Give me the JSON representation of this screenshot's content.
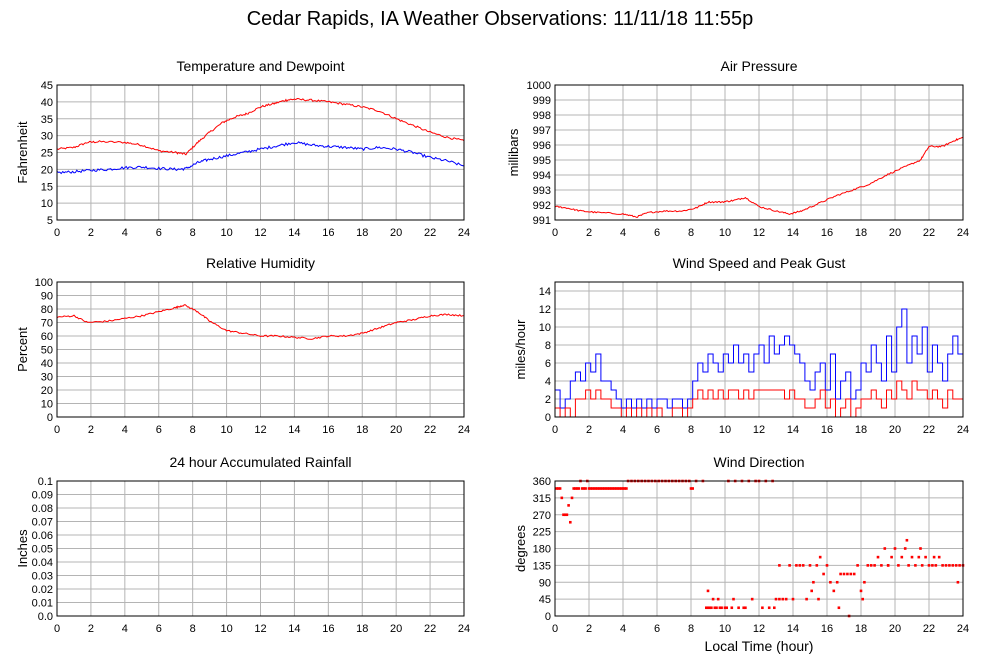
{
  "page": {
    "title": "Cedar Rapids, IA Weather Observations: 11/11/18 11:55p",
    "x_axis_label": "Local Time (hour)"
  },
  "colors": {
    "red": "#ff0000",
    "blue": "#0000ff",
    "grid": "#b4b4b4",
    "frame": "#000000"
  },
  "chart_data": [
    {
      "id": "temp",
      "type": "line",
      "title": "Temperature and Dewpoint",
      "xlabel": "",
      "ylabel": "Fahrenheit",
      "xlim": [
        0,
        24
      ],
      "ylim": [
        5,
        45
      ],
      "xticks": [
        0,
        2,
        4,
        6,
        8,
        10,
        12,
        14,
        16,
        18,
        20,
        22,
        24
      ],
      "yticks": [
        5,
        10,
        15,
        20,
        25,
        30,
        35,
        40,
        45
      ],
      "grid": true,
      "series": [
        {
          "color": "red",
          "noise": 0.3,
          "x": [
            0,
            1,
            1.8,
            2.5,
            4,
            5,
            6,
            7,
            7.6,
            8.3,
            9,
            9.8,
            10.5,
            11.2,
            12,
            12.8,
            13.5,
            14,
            15,
            16,
            17,
            18,
            19,
            20,
            21,
            22,
            23,
            24
          ],
          "y": [
            26,
            26.5,
            28,
            28.2,
            28,
            27.2,
            25.5,
            25,
            24.5,
            28,
            31,
            34,
            35.5,
            36.5,
            38.5,
            39.5,
            40.5,
            40.8,
            40.5,
            40,
            39.3,
            38.5,
            37.3,
            35,
            33,
            31,
            29.5,
            28.5
          ]
        },
        {
          "color": "blue",
          "noise": 0.4,
          "x": [
            0,
            1,
            2,
            3,
            4,
            5,
            6,
            7,
            7.6,
            8.3,
            9,
            10,
            11,
            12,
            13,
            14,
            15,
            16,
            17,
            18,
            19,
            20,
            21,
            22,
            23,
            24
          ],
          "y": [
            19,
            19.3,
            19.7,
            20,
            20.5,
            20.7,
            20.3,
            20,
            20.2,
            22,
            23,
            24,
            25,
            26,
            27,
            28,
            27.2,
            26.8,
            26.5,
            26,
            26.5,
            26,
            25,
            23.5,
            22.5,
            21
          ]
        }
      ]
    },
    {
      "id": "pressure",
      "type": "line",
      "title": "Air Pressure",
      "xlabel": "",
      "ylabel": "millibars",
      "xlim": [
        0,
        24
      ],
      "ylim": [
        991,
        1000
      ],
      "xticks": [
        0,
        2,
        4,
        6,
        8,
        10,
        12,
        14,
        16,
        18,
        20,
        22,
        24
      ],
      "yticks": [
        991,
        992,
        993,
        994,
        995,
        996,
        997,
        998,
        999,
        1000
      ],
      "grid": true,
      "series": [
        {
          "color": "red",
          "noise": 0.05,
          "x": [
            0,
            0.7,
            1.5,
            2.5,
            4,
            4.8,
            5.5,
            6.5,
            7.5,
            8.3,
            9,
            9.8,
            10.5,
            11.2,
            12,
            13,
            13.8,
            14.5,
            15.5,
            16.5,
            17.5,
            18.5,
            19.5,
            20.5,
            21.5,
            22,
            22.8,
            23.5,
            24
          ],
          "y": [
            991.9,
            991.8,
            991.6,
            991.5,
            991.4,
            991.2,
            991.5,
            991.6,
            991.6,
            991.8,
            992.2,
            992.2,
            992.3,
            992.5,
            991.9,
            991.6,
            991.4,
            991.6,
            992.1,
            992.6,
            993,
            993.4,
            994,
            994.5,
            995,
            995.9,
            995.9,
            996.3,
            996.5
          ]
        }
      ]
    },
    {
      "id": "rh",
      "type": "line",
      "title": "Relative Humidity",
      "xlabel": "",
      "ylabel": "Percent",
      "xlim": [
        0,
        24
      ],
      "ylim": [
        0,
        100
      ],
      "xticks": [
        0,
        2,
        4,
        6,
        8,
        10,
        12,
        14,
        16,
        18,
        20,
        22,
        24
      ],
      "yticks": [
        0,
        10,
        20,
        30,
        40,
        50,
        60,
        70,
        80,
        90,
        100
      ],
      "grid": true,
      "series": [
        {
          "color": "red",
          "noise": 0.6,
          "x": [
            0,
            1,
            1.8,
            3,
            4,
            5,
            6,
            7,
            7.5,
            8.3,
            9,
            10,
            11,
            12,
            13,
            14,
            15,
            16,
            17,
            18,
            19,
            20,
            21,
            22,
            23,
            24
          ],
          "y": [
            74,
            75,
            70,
            71,
            73,
            75,
            78,
            81,
            83,
            78,
            71,
            64,
            62,
            60,
            60,
            59,
            58,
            60,
            60,
            62,
            66,
            70,
            72,
            75,
            76,
            75
          ]
        }
      ]
    },
    {
      "id": "wind",
      "type": "line",
      "title": "Wind Speed and Peak Gust",
      "xlabel": "",
      "ylabel": "miles/hour",
      "xlim": [
        0,
        24
      ],
      "ylim": [
        0,
        15
      ],
      "xticks": [
        0,
        2,
        4,
        6,
        8,
        10,
        12,
        14,
        16,
        18,
        20,
        22,
        24
      ],
      "yticks": [
        0,
        2,
        4,
        6,
        8,
        10,
        12,
        14
      ],
      "grid": true,
      "series": [
        {
          "color": "blue",
          "step": true,
          "x": [
            0,
            0.3,
            0.6,
            0.9,
            1.2,
            1.5,
            1.8,
            2.1,
            2.4,
            2.7,
            3.0,
            3.3,
            3.6,
            3.9,
            4.2,
            4.5,
            4.8,
            5.1,
            5.4,
            5.7,
            6.0,
            6.3,
            6.6,
            6.9,
            7.2,
            7.5,
            7.8,
            8.1,
            8.4,
            8.7,
            9.0,
            9.3,
            9.6,
            9.9,
            10.2,
            10.5,
            10.8,
            11.1,
            11.4,
            11.7,
            12.0,
            12.3,
            12.6,
            12.9,
            13.2,
            13.5,
            13.8,
            14.1,
            14.4,
            14.7,
            15.0,
            15.3,
            15.6,
            15.9,
            16.2,
            16.5,
            16.8,
            17.1,
            17.4,
            17.7,
            18.0,
            18.3,
            18.6,
            18.9,
            19.2,
            19.5,
            19.8,
            20.1,
            20.4,
            20.7,
            21.0,
            21.3,
            21.6,
            21.9,
            22.2,
            22.5,
            22.8,
            23.1,
            23.4,
            23.7,
            24.0
          ],
          "y": [
            3,
            1,
            2,
            4,
            5,
            4,
            6,
            5,
            7,
            4,
            4,
            3,
            2,
            1,
            2,
            1,
            2,
            1,
            2,
            1,
            2,
            2,
            1,
            2,
            2,
            1,
            2,
            4,
            6,
            5,
            7,
            6,
            5,
            7,
            6,
            8,
            6,
            7,
            5,
            7,
            8,
            6,
            9,
            7,
            8,
            9,
            8,
            7,
            6,
            4,
            3,
            5,
            6,
            3,
            7,
            2,
            4,
            5,
            2,
            3,
            6,
            5,
            8,
            6,
            4,
            9,
            5,
            10,
            12,
            6,
            9,
            7,
            10,
            5,
            8,
            6,
            4,
            7,
            9,
            7,
            9
          ]
        },
        {
          "color": "red",
          "step": true,
          "x": [
            0,
            0.3,
            0.6,
            0.9,
            1.2,
            1.5,
            1.8,
            2.1,
            2.4,
            2.7,
            3.0,
            3.3,
            3.6,
            3.9,
            4.2,
            4.5,
            4.8,
            5.1,
            5.4,
            5.7,
            6.0,
            6.3,
            6.6,
            6.9,
            7.2,
            7.5,
            7.8,
            8.1,
            8.4,
            8.7,
            9.0,
            9.3,
            9.6,
            9.9,
            10.2,
            10.5,
            10.8,
            11.1,
            11.4,
            11.7,
            12.0,
            12.3,
            12.6,
            12.9,
            13.2,
            13.5,
            13.8,
            14.1,
            14.4,
            14.7,
            15.0,
            15.3,
            15.6,
            15.9,
            16.2,
            16.5,
            16.8,
            17.1,
            17.4,
            17.7,
            18.0,
            18.3,
            18.6,
            18.9,
            19.2,
            19.5,
            19.8,
            20.1,
            20.4,
            20.7,
            21.0,
            21.3,
            21.6,
            21.9,
            22.2,
            22.5,
            22.8,
            23.1,
            23.4,
            23.7,
            24.0
          ],
          "y": [
            1,
            0,
            1,
            0,
            2,
            2,
            3,
            2,
            3,
            2,
            2,
            1,
            1,
            0,
            1,
            0,
            1,
            0,
            1,
            0,
            1,
            0,
            0,
            1,
            1,
            0,
            1,
            2,
            3,
            2,
            3,
            2,
            3,
            2,
            3,
            3,
            2,
            3,
            2,
            3,
            3,
            3,
            3,
            3,
            3,
            2,
            3,
            2,
            2,
            1,
            1,
            2,
            3,
            1,
            2,
            0,
            1,
            2,
            0,
            1,
            2,
            2,
            3,
            2,
            1,
            3,
            2,
            4,
            3,
            2,
            4,
            3,
            3,
            2,
            3,
            2,
            1,
            3,
            2,
            2,
            3
          ]
        }
      ]
    },
    {
      "id": "rain",
      "type": "line",
      "title": "24 hour Accumulated Rainfall",
      "xlabel": "",
      "ylabel": "Inches",
      "xlim": [
        0,
        24
      ],
      "ylim": [
        0,
        0.1
      ],
      "xticks": [
        0,
        2,
        4,
        6,
        8,
        10,
        12,
        14,
        16,
        18,
        20,
        22,
        24
      ],
      "yticks": [
        0.0,
        0.01,
        0.02,
        0.03,
        0.04,
        0.05,
        0.06,
        0.07,
        0.08,
        0.09,
        0.1
      ],
      "ytick_labels": [
        "0.0",
        "0.01",
        "0.02",
        "0.03",
        "0.04",
        "0.05",
        "0.06",
        "0.07",
        "0.08",
        "0.09",
        "0.1"
      ],
      "grid": true,
      "series": [
        {
          "color": "red",
          "x": [
            0,
            24
          ],
          "y": [
            0,
            0
          ]
        }
      ]
    },
    {
      "id": "dir",
      "type": "scatter",
      "title": "Wind Direction",
      "xlabel": "Local Time (hour)",
      "ylabel": "degrees",
      "xlim": [
        0,
        24
      ],
      "ylim": [
        0,
        360
      ],
      "xticks": [
        0,
        2,
        4,
        6,
        8,
        10,
        12,
        14,
        16,
        18,
        20,
        22,
        24
      ],
      "yticks": [
        0,
        45,
        90,
        135,
        180,
        225,
        270,
        315,
        360
      ],
      "grid": true,
      "series": [
        {
          "color": "red",
          "x": [
            0.1,
            0.2,
            0.3,
            0.4,
            0.5,
            0.6,
            0.7,
            0.8,
            0.9,
            1.0,
            1.1,
            1.2,
            1.3,
            1.4,
            1.5,
            1.6,
            1.7,
            1.8,
            1.9,
            2.0,
            2.1,
            2.2,
            2.3,
            2.4,
            2.5,
            2.6,
            2.7,
            2.8,
            2.9,
            3.0,
            3.1,
            3.2,
            3.3,
            3.4,
            3.5,
            3.6,
            3.7,
            3.8,
            3.9,
            4.0,
            4.1,
            4.2,
            4.3,
            4.5,
            4.7,
            4.9,
            5.1,
            5.3,
            5.5,
            5.7,
            5.9,
            6.1,
            6.3,
            6.5,
            6.7,
            6.9,
            7.1,
            7.3,
            7.5,
            7.7,
            7.9,
            8.0,
            8.1,
            8.3,
            8.7,
            8.9,
            9.0,
            9.1,
            9.2,
            9.3,
            9.4,
            9.5,
            9.6,
            9.7,
            9.8,
            10.0,
            10.1,
            10.2,
            10.4,
            10.6,
            10.8,
            11.0,
            11.2,
            11.4,
            11.6,
            11.8,
            12.0,
            12.2,
            12.4,
            12.6,
            12.8,
            13.0,
            13.2,
            13.4,
            13.6,
            13.8,
            14.0,
            14.2,
            14.4,
            14.6,
            14.8,
            15.0,
            15.2,
            15.4,
            15.6,
            15.8,
            16.0,
            16.2,
            16.4,
            16.6,
            16.8,
            17.0,
            17.2,
            17.4,
            17.6,
            17.8,
            18.0,
            18.2,
            18.4,
            18.6,
            18.8,
            19.0,
            19.2,
            19.4,
            19.6,
            19.8,
            20.0,
            20.2,
            20.4,
            20.6,
            20.8,
            21.0,
            21.2,
            21.4,
            21.6,
            21.8,
            22.0,
            22.2,
            22.4,
            22.6,
            22.8,
            23.0,
            23.2,
            23.4,
            23.6,
            23.8,
            24.0,
            9.0,
            10.5,
            11.1,
            12.9,
            13.2,
            15.1,
            15.5,
            16.7,
            17.3,
            18.1,
            19.6,
            20.7,
            21.5,
            22.3,
            23.7
          ],
          "y": [
            340,
            340,
            340,
            315,
            270,
            270,
            270,
            295,
            250,
            315,
            340,
            340,
            340,
            340,
            360,
            340,
            340,
            340,
            360,
            340,
            340,
            340,
            340,
            340,
            340,
            340,
            340,
            340,
            340,
            340,
            340,
            340,
            340,
            340,
            340,
            340,
            340,
            340,
            340,
            340,
            340,
            340,
            360,
            360,
            360,
            360,
            360,
            360,
            360,
            360,
            360,
            360,
            360,
            360,
            360,
            360,
            360,
            360,
            360,
            360,
            360,
            340,
            340,
            360,
            360,
            22,
            22,
            22,
            22,
            45,
            22,
            22,
            45,
            22,
            22,
            22,
            22,
            360,
            22,
            360,
            22,
            360,
            22,
            360,
            45,
            360,
            360,
            22,
            360,
            22,
            360,
            45,
            45,
            45,
            45,
            135,
            45,
            135,
            135,
            135,
            45,
            135,
            90,
            135,
            157,
            112,
            135,
            90,
            67,
            90,
            112,
            112,
            112,
            112,
            112,
            135,
            67,
            90,
            135,
            135,
            135,
            157,
            135,
            180,
            135,
            157,
            180,
            135,
            157,
            180,
            135,
            157,
            135,
            157,
            135,
            157,
            135,
            135,
            135,
            157,
            135,
            135,
            135,
            135,
            135,
            135,
            135,
            67,
            45,
            22,
            22,
            135,
            67,
            45,
            22,
            0,
            45,
            135,
            202,
            180,
            157,
            90
          ]
        }
      ]
    }
  ]
}
